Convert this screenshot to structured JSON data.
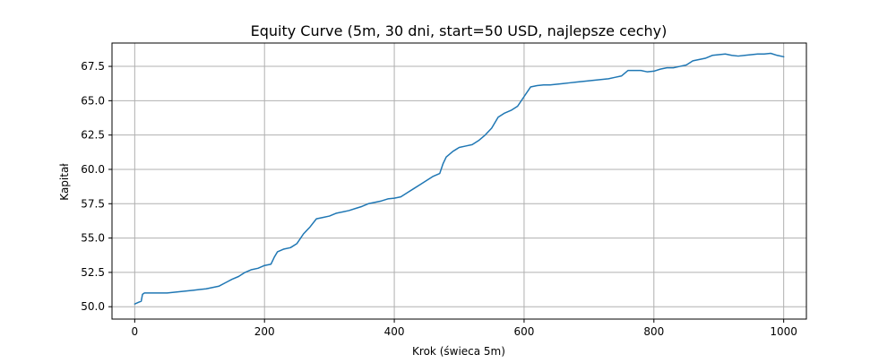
{
  "chart_data": {
    "type": "line",
    "title": "Equity Curve (5m, 30 dni, start=50 USD, najlepsze cechy)",
    "xlabel": "Krok (świeca 5m)",
    "ylabel": "Kapitał",
    "xlim": [
      -35,
      1035
    ],
    "ylim": [
      49.1,
      69.2
    ],
    "xticks": [
      0,
      200,
      400,
      600,
      800,
      1000
    ],
    "xtick_labels": [
      "0",
      "200",
      "400",
      "600",
      "800",
      "1000"
    ],
    "yticks": [
      50.0,
      52.5,
      55.0,
      57.5,
      60.0,
      62.5,
      65.0,
      67.5
    ],
    "ytick_labels": [
      "50.0",
      "52.5",
      "55.0",
      "57.5",
      "60.0",
      "62.5",
      "65.0",
      "67.5"
    ],
    "grid": true,
    "line_color": "#1f77b4",
    "series": [
      {
        "x": [
          0,
          5,
          10,
          12,
          15,
          20,
          30,
          40,
          50,
          60,
          70,
          80,
          90,
          100,
          110,
          120,
          130,
          140,
          150,
          160,
          170,
          180,
          190,
          200,
          210,
          215,
          220,
          230,
          240,
          250,
          260,
          270,
          280,
          290,
          300,
          310,
          320,
          330,
          340,
          350,
          360,
          370,
          380,
          390,
          400,
          410,
          420,
          430,
          440,
          450,
          460,
          470,
          475,
          480,
          490,
          500,
          510,
          520,
          530,
          540,
          550,
          560,
          570,
          580,
          590,
          600,
          610,
          620,
          630,
          640,
          650,
          660,
          670,
          680,
          690,
          700,
          710,
          720,
          730,
          740,
          750,
          760,
          770,
          780,
          790,
          800,
          810,
          820,
          830,
          840,
          850,
          860,
          870,
          880,
          890,
          900,
          910,
          920,
          930,
          940,
          950,
          960,
          970,
          980,
          990,
          1000
        ],
        "y": [
          50.2,
          50.3,
          50.4,
          50.9,
          51.0,
          51.0,
          51.0,
          51.0,
          51.0,
          51.05,
          51.1,
          51.15,
          51.2,
          51.25,
          51.3,
          51.4,
          51.5,
          51.75,
          52.0,
          52.2,
          52.5,
          52.7,
          52.8,
          53.0,
          53.1,
          53.6,
          54.0,
          54.2,
          54.3,
          54.6,
          55.3,
          55.8,
          56.4,
          56.5,
          56.6,
          56.8,
          56.9,
          57.0,
          57.15,
          57.3,
          57.5,
          57.6,
          57.7,
          57.85,
          57.9,
          58.0,
          58.3,
          58.6,
          58.9,
          59.2,
          59.5,
          59.7,
          60.4,
          60.9,
          61.3,
          61.6,
          61.7,
          61.8,
          62.1,
          62.5,
          63.0,
          63.8,
          64.1,
          64.3,
          64.6,
          65.3,
          66.0,
          66.1,
          66.15,
          66.15,
          66.2,
          66.25,
          66.3,
          66.35,
          66.4,
          66.45,
          66.5,
          66.55,
          66.6,
          66.7,
          66.8,
          67.2,
          67.2,
          67.2,
          67.1,
          67.15,
          67.3,
          67.4,
          67.4,
          67.5,
          67.6,
          67.9,
          68.0,
          68.1,
          68.3,
          68.35,
          68.4,
          68.3,
          68.25,
          68.3,
          68.35,
          68.4,
          68.4,
          68.45,
          68.3,
          68.2
        ]
      }
    ]
  }
}
